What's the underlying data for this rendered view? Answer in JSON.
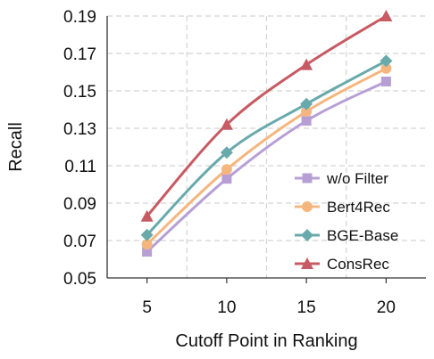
{
  "chart_data": {
    "type": "line",
    "xlabel": "Cutoff Point in Ranking",
    "ylabel": "Recall",
    "x": [
      5,
      10,
      15,
      20
    ],
    "xlim": [
      2.5,
      22.5
    ],
    "ylim": [
      0.05,
      0.19
    ],
    "xticks": [
      "5",
      "10",
      "15",
      "20"
    ],
    "yticks": [
      "0.05",
      "0.07",
      "0.09",
      "0.11",
      "0.13",
      "0.15",
      "0.17",
      "0.19"
    ],
    "grid": true,
    "legend_position": "bottom-right",
    "series": [
      {
        "name": "w/o Filter",
        "values": [
          0.064,
          0.103,
          0.134,
          0.155
        ],
        "color": "#b79fd6",
        "marker": "square"
      },
      {
        "name": "Bert4Rec",
        "values": [
          0.068,
          0.108,
          0.139,
          0.162
        ],
        "color": "#f5b67e",
        "marker": "circle"
      },
      {
        "name": "BGE-Base",
        "values": [
          0.073,
          0.117,
          0.143,
          0.166
        ],
        "color": "#68a9ab",
        "marker": "diamond"
      },
      {
        "name": "ConsRec",
        "values": [
          0.083,
          0.132,
          0.164,
          0.19
        ],
        "color": "#c75a63",
        "marker": "triangle"
      }
    ]
  }
}
